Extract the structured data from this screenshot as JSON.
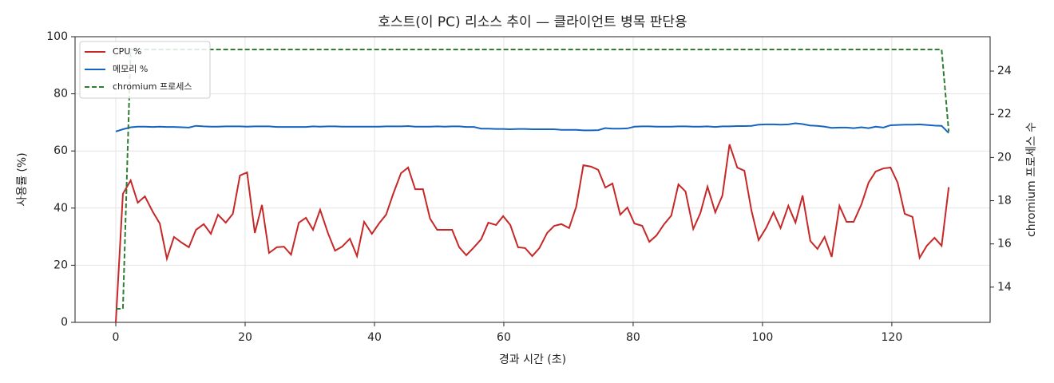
{
  "chart_data": {
    "type": "line",
    "title": "호스트(이 PC) 리소스 추이 — 클라이언트 병목 판단용",
    "x_label": "경과 시간 (초)",
    "y_label": "사용률 (%)",
    "y2_label": "chromium 프로세스 수",
    "x": [
      0,
      1.1,
      2.3,
      3.4,
      4.5,
      5.7,
      6.8,
      7.9,
      9.0,
      10.2,
      11.3,
      12.4,
      13.6,
      14.7,
      15.8,
      17.0,
      18.1,
      19.2,
      20.3,
      21.5,
      22.6,
      23.7,
      24.9,
      26.0,
      27.1,
      28.3,
      29.4,
      30.5,
      31.6,
      32.8,
      33.9,
      35.0,
      36.2,
      37.3,
      38.4,
      39.6,
      40.7,
      41.8,
      42.9,
      44.1,
      45.2,
      46.3,
      47.5,
      48.6,
      49.7,
      50.9,
      52.0,
      53.1,
      54.2,
      55.4,
      56.5,
      57.6,
      58.8,
      59.9,
      61.0,
      62.2,
      63.3,
      64.4,
      65.5,
      66.7,
      67.8,
      68.9,
      70.1,
      71.2,
      72.3,
      73.5,
      74.6,
      75.7,
      76.8,
      78.0,
      79.1,
      80.2,
      81.4,
      82.5,
      83.6,
      84.8,
      85.9,
      87.0,
      88.1,
      89.3,
      90.4,
      91.5,
      92.7,
      93.8,
      94.9,
      96.1,
      97.2,
      98.3,
      99.4,
      100.6,
      101.7,
      102.8,
      104.0,
      105.1,
      106.2,
      107.4,
      108.5,
      109.6,
      110.7,
      111.9,
      113.0,
      114.1,
      115.3,
      116.4,
      117.5,
      118.7,
      119.8,
      120.9,
      122.0,
      123.2,
      124.3,
      125.4,
      126.6,
      127.7,
      128.8
    ],
    "series": [
      {
        "name": "CPU %",
        "color": "#c62828",
        "dash": false,
        "values": [
          0,
          45,
          49.7,
          41.9,
          44.1,
          38.8,
          34.6,
          22.3,
          29.9,
          27.9,
          26.3,
          32.4,
          34.4,
          31.0,
          37.7,
          34.9,
          38.0,
          51.4,
          52.5,
          31.3,
          41.1,
          24.3,
          26.3,
          26.5,
          23.7,
          34.9,
          36.6,
          32.4,
          39.4,
          31.3,
          25.1,
          26.5,
          29.3,
          23.2,
          35.2,
          31.0,
          34.6,
          37.7,
          45,
          52.2,
          54.2,
          46.6,
          46.6,
          36.3,
          32.4,
          32.4,
          32.4,
          26.3,
          23.5,
          26.3,
          29.1,
          34.9,
          34.1,
          37.2,
          34.1,
          26.3,
          26.0,
          23.2,
          26.0,
          31.3,
          33.8,
          34.4,
          33.0,
          40.5,
          55.0,
          54.5,
          53.4,
          47.2,
          48.6,
          37.7,
          40.2,
          34.6,
          33.8,
          28.2,
          30.4,
          34.4,
          37.4,
          48.3,
          45.8,
          32.7,
          38.3,
          47.5,
          38.5,
          44.4,
          62.3,
          54.2,
          53.1,
          39.1,
          28.8,
          33.2,
          38.5,
          33.0,
          40.8,
          34.9,
          44.4,
          28.5,
          25.7,
          29.9,
          22.9,
          40.8,
          35.2,
          35.2,
          41.3,
          48.9,
          52.8,
          53.9,
          54.2,
          48.9,
          38.0,
          36.9,
          22.6,
          26.8,
          29.6,
          26.8,
          47.3
        ]
      },
      {
        "name": "메모리 %",
        "color": "#1565c0",
        "dash": false,
        "values": [
          66.8,
          67.6,
          68.3,
          68.5,
          68.5,
          68.4,
          68.5,
          68.4,
          68.4,
          68.3,
          68.2,
          68.8,
          68.6,
          68.5,
          68.5,
          68.6,
          68.6,
          68.6,
          68.5,
          68.6,
          68.6,
          68.6,
          68.4,
          68.4,
          68.4,
          68.4,
          68.4,
          68.6,
          68.5,
          68.6,
          68.6,
          68.5,
          68.5,
          68.5,
          68.5,
          68.5,
          68.5,
          68.6,
          68.6,
          68.6,
          68.7,
          68.5,
          68.5,
          68.5,
          68.6,
          68.5,
          68.6,
          68.6,
          68.4,
          68.4,
          67.8,
          67.8,
          67.7,
          67.7,
          67.6,
          67.7,
          67.7,
          67.6,
          67.6,
          67.6,
          67.6,
          67.4,
          67.4,
          67.4,
          67.2,
          67.2,
          67.3,
          68.0,
          67.8,
          67.8,
          67.9,
          68.5,
          68.6,
          68.6,
          68.5,
          68.5,
          68.5,
          68.6,
          68.6,
          68.5,
          68.5,
          68.6,
          68.4,
          68.6,
          68.6,
          68.7,
          68.7,
          68.8,
          69.2,
          69.3,
          69.3,
          69.2,
          69.3,
          69.7,
          69.4,
          68.9,
          68.8,
          68.5,
          68.1,
          68.2,
          68.2,
          68.0,
          68.3,
          68.0,
          68.5,
          68.2,
          69.0,
          69.1,
          69.2,
          69.2,
          69.3,
          69.1,
          68.9,
          68.8,
          66.3
        ]
      },
      {
        "name": "chromium 프로세스",
        "color": "#2e7d32",
        "dash": true,
        "axis": "y2",
        "values": [
          13,
          13,
          25,
          25,
          25,
          25,
          25,
          25,
          25,
          25,
          25,
          25,
          25,
          25,
          25,
          25,
          25,
          25,
          25,
          25,
          25,
          25,
          25,
          25,
          25,
          25,
          25,
          25,
          25,
          25,
          25,
          25,
          25,
          25,
          25,
          25,
          25,
          25,
          25,
          25,
          25,
          25,
          25,
          25,
          25,
          25,
          25,
          25,
          25,
          25,
          25,
          25,
          25,
          25,
          25,
          25,
          25,
          25,
          25,
          25,
          25,
          25,
          25,
          25,
          25,
          25,
          25,
          25,
          25,
          25,
          25,
          25,
          25,
          25,
          25,
          25,
          25,
          25,
          25,
          25,
          25,
          25,
          25,
          25,
          25,
          25,
          25,
          25,
          25,
          25,
          25,
          25,
          25,
          25,
          25,
          25,
          25,
          25,
          25,
          25,
          25,
          25,
          25,
          25,
          25,
          25,
          25,
          25,
          25,
          25,
          25,
          25,
          25,
          25,
          21.2
        ]
      }
    ],
    "xlim": [
      -6.3,
      135.2
    ],
    "xticks": [
      0,
      20,
      40,
      60,
      80,
      100,
      120
    ],
    "ylim": [
      0,
      100
    ],
    "yticks": [
      0,
      20,
      40,
      60,
      80,
      100
    ],
    "y2lim": [
      12.37,
      25.59
    ],
    "y2ticks": [
      14,
      16,
      18,
      20,
      22,
      24
    ],
    "grid": true,
    "legend": "upper-left"
  }
}
